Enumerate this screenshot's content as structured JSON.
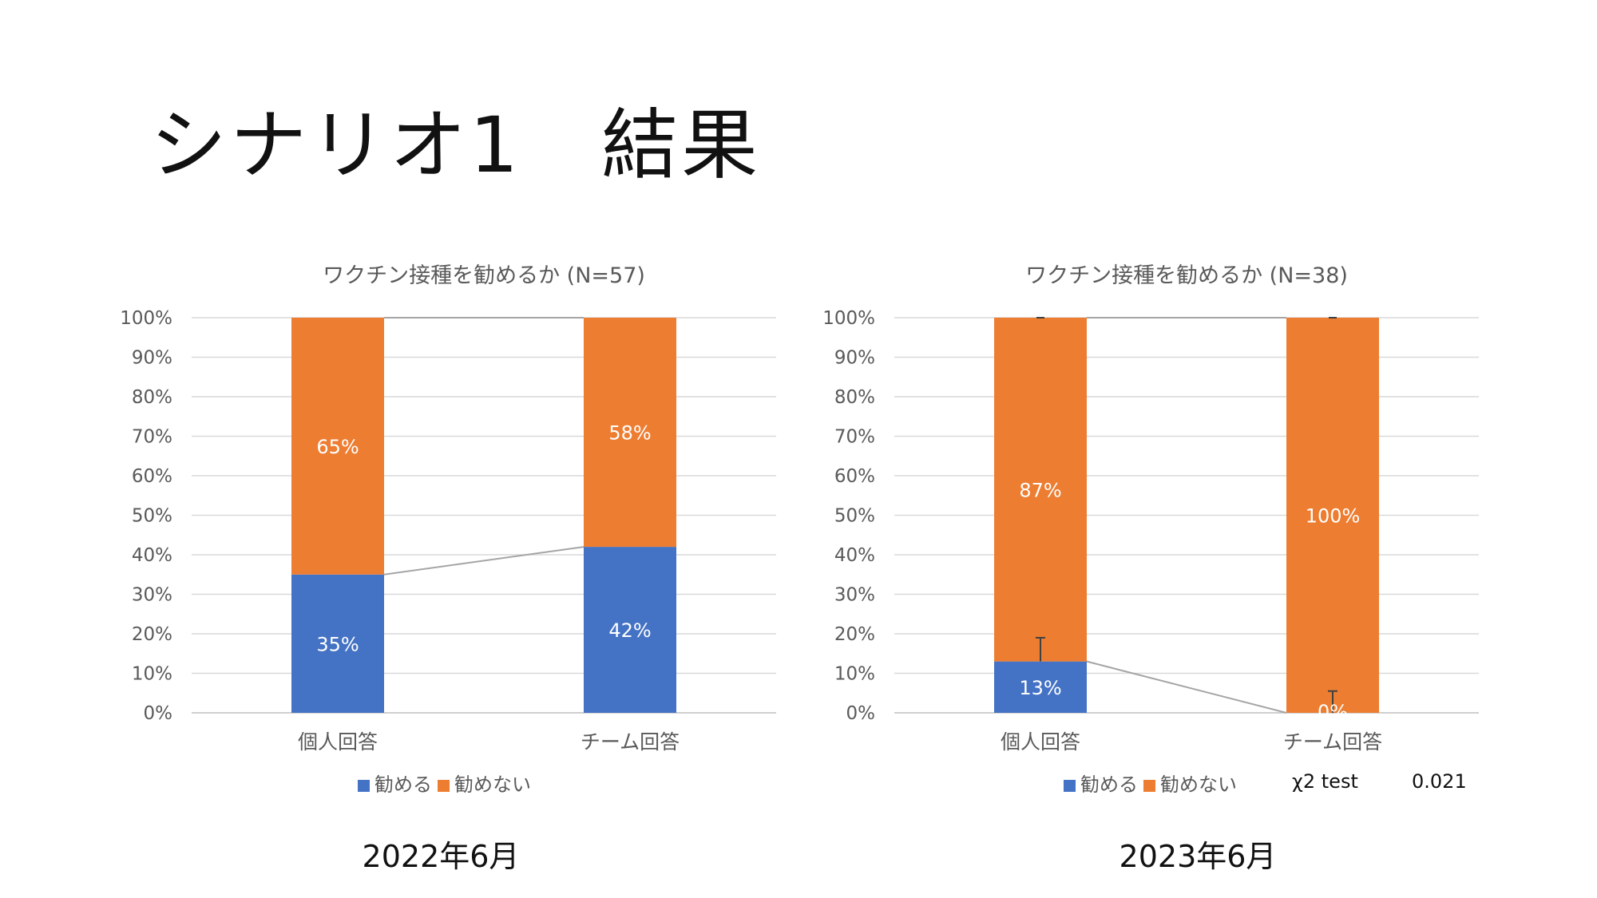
{
  "slide": {
    "title": "シナリオ1　結果"
  },
  "periods": [
    "2022年6月",
    "2023年6月"
  ],
  "colors": {
    "recommend": "#4472C4",
    "not_recommend": "#ED7D31",
    "grid": "#D9D9D9",
    "connector": "#A5A5A5",
    "text": "#595959"
  },
  "chart_data": [
    {
      "type": "bar",
      "stacked": true,
      "percent": true,
      "title": "ワクチン接種を勧めるか (N=57)",
      "categories": [
        "個人回答",
        "チーム回答"
      ],
      "series": [
        {
          "name": "勧める",
          "values": [
            35,
            42
          ],
          "labels": [
            "35%",
            "42%"
          ]
        },
        {
          "name": "勧めない",
          "values": [
            65,
            58
          ],
          "labels": [
            "65%",
            "58%"
          ]
        }
      ],
      "ylim": [
        0,
        100
      ],
      "yticks": [
        "0%",
        "10%",
        "20%",
        "30%",
        "40%",
        "50%",
        "60%",
        "70%",
        "80%",
        "90%",
        "100%"
      ],
      "grid": true,
      "series_lines": true,
      "error_bars": false,
      "legend": "bottom",
      "annotation": null
    },
    {
      "type": "bar",
      "stacked": true,
      "percent": true,
      "title": "ワクチン接種を勧めるか (N=38)",
      "categories": [
        "個人回答",
        "チーム回答"
      ],
      "series": [
        {
          "name": "勧める",
          "values": [
            13,
            0
          ],
          "labels": [
            "13%",
            "0%"
          ]
        },
        {
          "name": "勧めない",
          "values": [
            87,
            100
          ],
          "labels": [
            "87%",
            "100%"
          ]
        }
      ],
      "ylim": [
        0,
        100
      ],
      "yticks": [
        "0%",
        "10%",
        "20%",
        "30%",
        "40%",
        "50%",
        "60%",
        "70%",
        "80%",
        "90%",
        "100%"
      ],
      "grid": true,
      "series_lines": true,
      "error_bars": true,
      "legend": "bottom",
      "annotation": {
        "label": "χ2 test",
        "value": "0.021"
      }
    }
  ]
}
